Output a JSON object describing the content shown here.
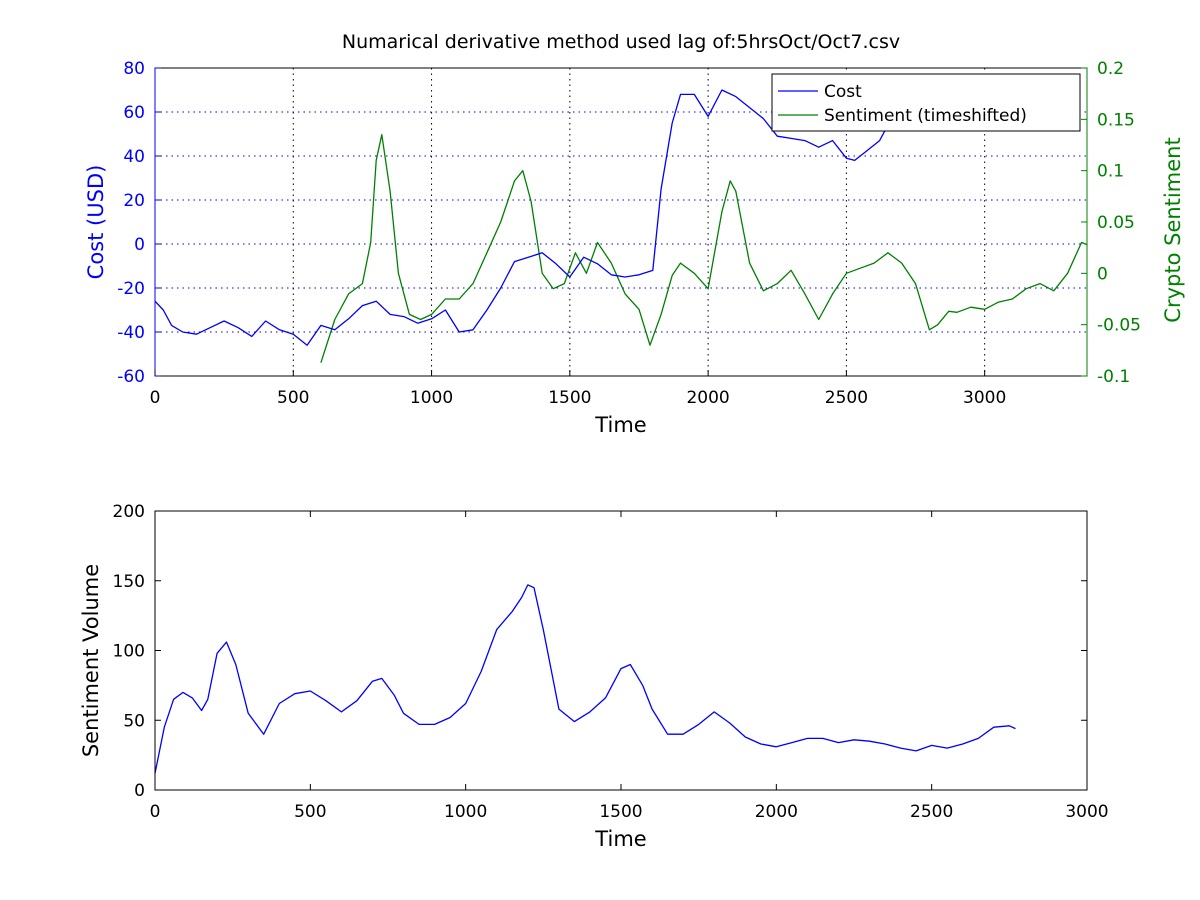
{
  "chart_data": [
    {
      "type": "line",
      "title": "Numarical derivative method used lag of:5hrsOct/Oct7.csv",
      "xlabel": "Time",
      "ylabel_left": "Cost (USD)",
      "ylabel_right": "Crypto Sentiment",
      "xlim": [
        0,
        3370
      ],
      "ylim_left": [
        -60,
        80
      ],
      "ylim_right": [
        -0.1,
        0.2
      ],
      "x_ticks": [
        0,
        500,
        1000,
        1500,
        2000,
        2500,
        3000
      ],
      "y_ticks_left": [
        -60,
        -40,
        -20,
        0,
        20,
        40,
        60,
        80
      ],
      "y_ticks_right": [
        -0.1,
        -0.05,
        0,
        0.05,
        0.1,
        0.15,
        0.2
      ],
      "y_tick_labels_right": [
        "-0.1",
        "-0.05",
        "0",
        "0.05",
        "0.1",
        "0.15",
        "0.2"
      ],
      "grid": true,
      "legend": "top-right",
      "colors": {
        "left_axis": "#0000ff",
        "right_axis": "#008000",
        "cost": "#0000ff",
        "sentiment": "#008000"
      },
      "series": [
        {
          "name": "Cost",
          "axis": "left",
          "color": "#0000ff",
          "x": [
            0,
            30,
            60,
            100,
            150,
            200,
            250,
            300,
            350,
            400,
            450,
            500,
            550,
            600,
            650,
            700,
            750,
            800,
            850,
            900,
            950,
            1000,
            1050,
            1100,
            1150,
            1200,
            1250,
            1300,
            1350,
            1400,
            1450,
            1500,
            1550,
            1600,
            1650,
            1700,
            1750,
            1800,
            1830,
            1870,
            1900,
            1950,
            2000,
            2050,
            2100,
            2150,
            2200,
            2250,
            2300,
            2350,
            2400,
            2450,
            2500,
            2530,
            2570,
            2620,
            2650
          ],
          "y": [
            -26,
            -30,
            -37,
            -40,
            -41,
            -38,
            -35,
            -38,
            -42,
            -35,
            -39,
            -41,
            -46,
            -37,
            -39,
            -34,
            -28,
            -26,
            -32,
            -33,
            -36,
            -34,
            -30,
            -40,
            -39,
            -30,
            -20,
            -8,
            -6,
            -4,
            -9,
            -15,
            -6,
            -9,
            -14,
            -15,
            -14,
            -12,
            25,
            55,
            68,
            68,
            58,
            70,
            67,
            62,
            57,
            49,
            48,
            47,
            44,
            47,
            39,
            38,
            42,
            47,
            54
          ]
        },
        {
          "name": "Sentiment (timeshifted)",
          "axis": "right",
          "color": "#008000",
          "x": [
            600,
            650,
            700,
            750,
            780,
            800,
            820,
            850,
            880,
            920,
            960,
            1000,
            1050,
            1100,
            1150,
            1200,
            1250,
            1300,
            1330,
            1360,
            1400,
            1440,
            1480,
            1520,
            1560,
            1600,
            1650,
            1700,
            1750,
            1790,
            1830,
            1870,
            1900,
            1950,
            2000,
            2050,
            2080,
            2100,
            2150,
            2200,
            2250,
            2300,
            2350,
            2400,
            2450,
            2500,
            2550,
            2600,
            2650,
            2700,
            2750,
            2800,
            2830,
            2870,
            2900,
            2950,
            3000,
            3050,
            3100,
            3150,
            3200,
            3250,
            3300,
            3350,
            3370
          ],
          "y": [
            -0.087,
            -0.045,
            -0.02,
            -0.01,
            0.03,
            0.11,
            0.135,
            0.08,
            0.0,
            -0.04,
            -0.045,
            -0.04,
            -0.025,
            -0.025,
            -0.01,
            0.02,
            0.05,
            0.09,
            0.1,
            0.07,
            0.0,
            -0.015,
            -0.01,
            0.02,
            0.0,
            0.03,
            0.01,
            -0.02,
            -0.035,
            -0.07,
            -0.04,
            -0.002,
            0.01,
            0.0,
            -0.015,
            0.06,
            0.09,
            0.08,
            0.01,
            -0.017,
            -0.01,
            0.003,
            -0.02,
            -0.045,
            -0.02,
            0.0,
            0.005,
            0.01,
            0.02,
            0.01,
            -0.01,
            -0.055,
            -0.05,
            -0.037,
            -0.038,
            -0.033,
            -0.035,
            -0.028,
            -0.025,
            -0.015,
            -0.01,
            -0.017,
            0.0,
            0.03,
            0.028
          ]
        }
      ]
    },
    {
      "type": "line",
      "title": "",
      "xlabel": "Time",
      "ylabel": "Sentiment Volume",
      "xlim": [
        0,
        3000
      ],
      "ylim": [
        0,
        200
      ],
      "x_ticks": [
        0,
        500,
        1000,
        1500,
        2000,
        2500,
        3000
      ],
      "y_ticks": [
        0,
        50,
        100,
        150,
        200
      ],
      "grid": false,
      "series": [
        {
          "color": "#0000ff",
          "x": [
            0,
            30,
            60,
            90,
            120,
            150,
            170,
            200,
            230,
            260,
            300,
            350,
            400,
            450,
            500,
            550,
            600,
            650,
            700,
            730,
            770,
            800,
            850,
            900,
            950,
            1000,
            1050,
            1100,
            1150,
            1180,
            1200,
            1220,
            1250,
            1300,
            1350,
            1400,
            1450,
            1500,
            1530,
            1570,
            1600,
            1650,
            1700,
            1750,
            1800,
            1850,
            1900,
            1950,
            2000,
            2050,
            2100,
            2150,
            2200,
            2250,
            2300,
            2350,
            2400,
            2450,
            2500,
            2550,
            2600,
            2650,
            2700,
            2750,
            2770
          ],
          "y": [
            12,
            45,
            65,
            70,
            66,
            57,
            65,
            98,
            106,
            90,
            55,
            40,
            62,
            69,
            71,
            64,
            56,
            64,
            78,
            80,
            68,
            55,
            47,
            47,
            52,
            62,
            85,
            115,
            128,
            138,
            147,
            145,
            115,
            58,
            49,
            56,
            66,
            87,
            90,
            75,
            58,
            40,
            40,
            47,
            56,
            48,
            38,
            33,
            31,
            34,
            37,
            37,
            34,
            36,
            35,
            33,
            30,
            28,
            32,
            30,
            33,
            37,
            45,
            46,
            44
          ]
        }
      ]
    }
  ]
}
